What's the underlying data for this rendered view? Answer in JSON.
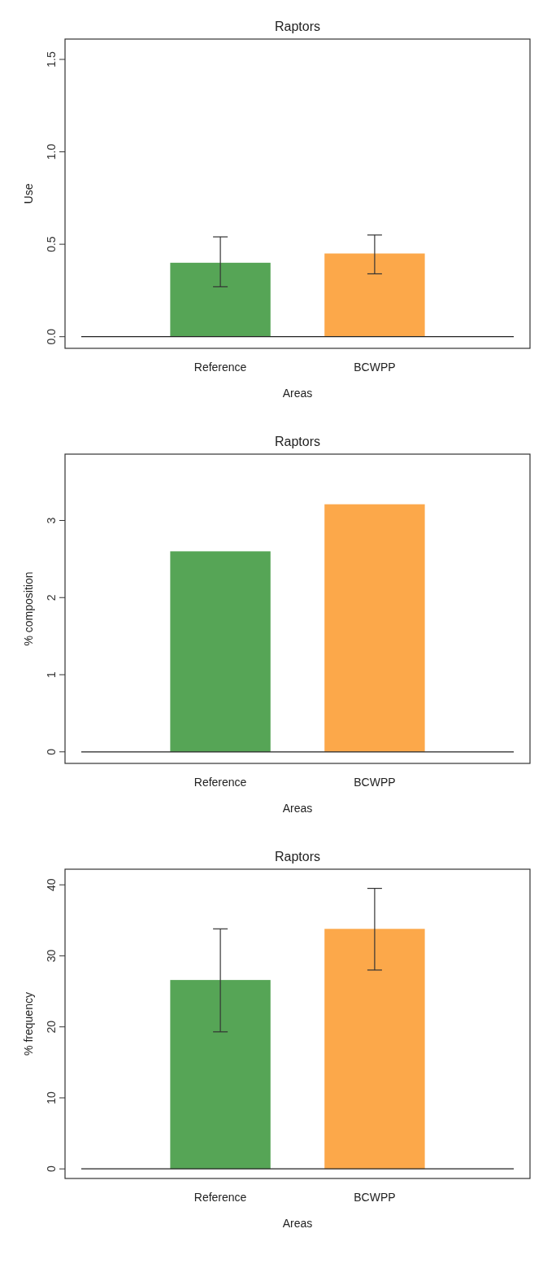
{
  "chart_data": [
    {
      "type": "bar",
      "title": "Raptors",
      "xlabel": "Areas",
      "ylabel": "Use",
      "categories": [
        "Reference",
        "BCWPP"
      ],
      "colors": [
        "#56a556",
        "#fca84a"
      ],
      "values": [
        0.4,
        0.45
      ],
      "errors": [
        [
          0.27,
          0.54
        ],
        [
          0.34,
          0.55
        ]
      ],
      "ylim": [
        -0.063,
        1.61
      ],
      "yticks": [
        {
          "value": 0,
          "label": "0.0"
        },
        0.5,
        {
          "value": 1,
          "label": "1.0"
        },
        1.5
      ]
    },
    {
      "type": "bar",
      "title": "Raptors",
      "xlabel": "Areas",
      "ylabel": "% composition",
      "categories": [
        "Reference",
        "BCWPP"
      ],
      "colors": [
        "#56a556",
        "#fca84a"
      ],
      "values": [
        2.6,
        3.21
      ],
      "ylim": [
        -0.15,
        3.86
      ],
      "yticks": [
        0,
        1,
        2,
        3
      ]
    },
    {
      "type": "bar",
      "title": "Raptors",
      "xlabel": "Areas",
      "ylabel": "% frequency",
      "categories": [
        "Reference",
        "BCWPP"
      ],
      "colors": [
        "#56a556",
        "#fca84a"
      ],
      "values": [
        26.6,
        33.8
      ],
      "errors": [
        [
          19.3,
          33.8
        ],
        [
          28.0,
          39.5
        ]
      ],
      "ylim": [
        -1.35,
        42.2
      ],
      "yticks": [
        0,
        10,
        20,
        30,
        40
      ]
    }
  ]
}
